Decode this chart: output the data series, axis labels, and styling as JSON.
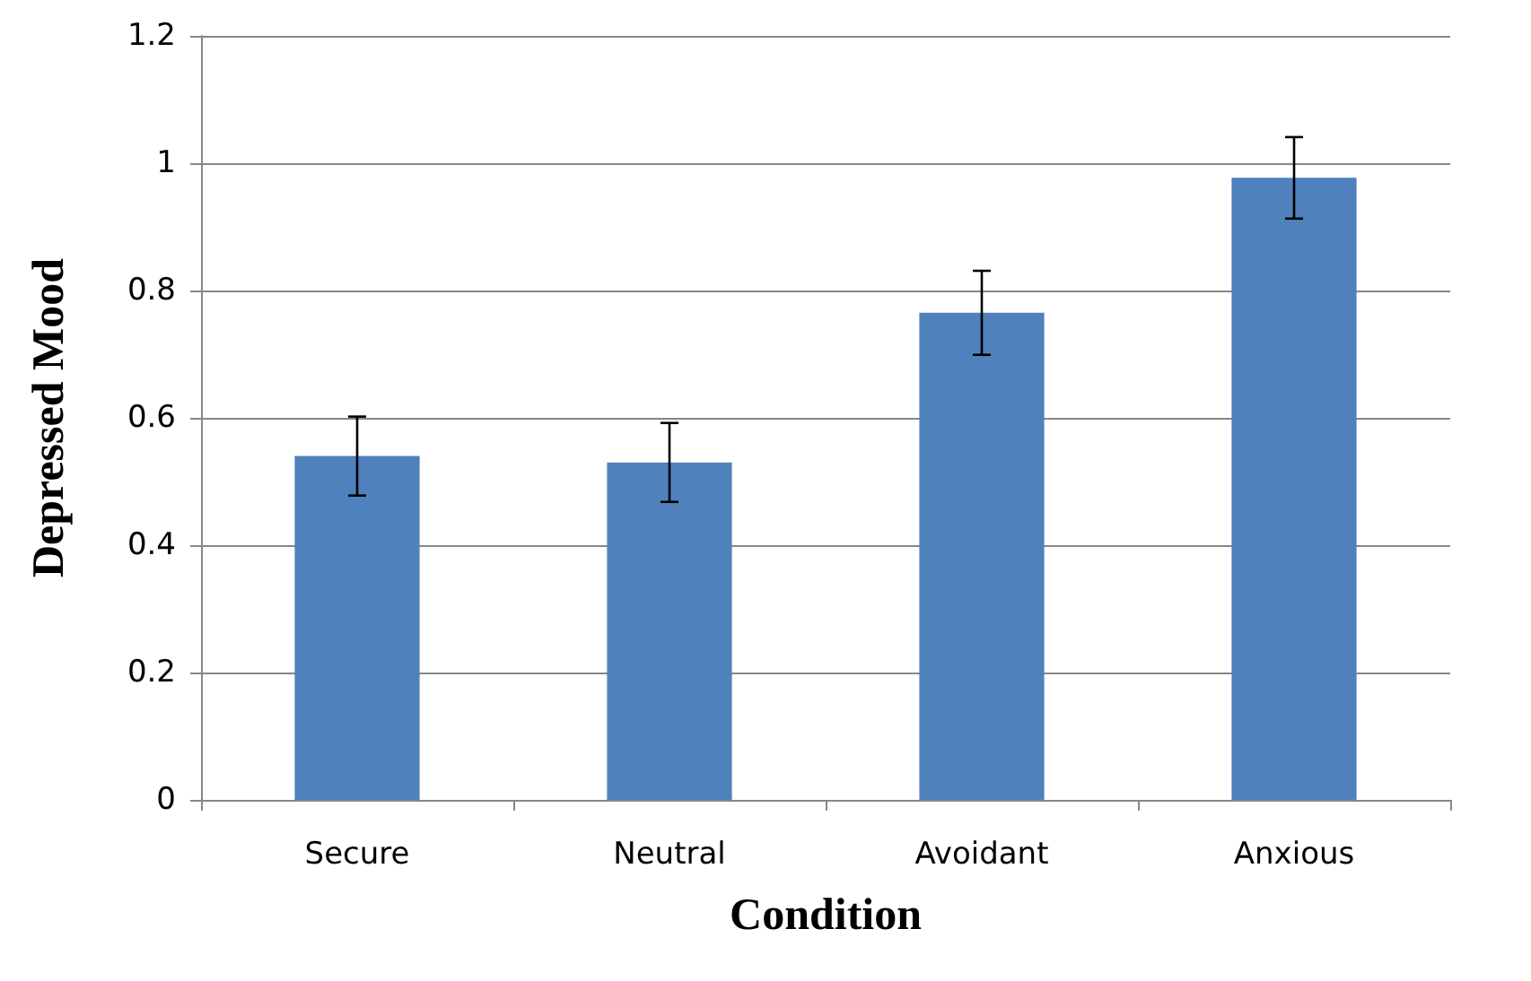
{
  "chart_data": {
    "type": "bar",
    "xlabel": "Condition",
    "ylabel": "Depressed Mood",
    "categories": [
      "Secure",
      "Neutral",
      "Avoidant",
      "Anxious"
    ],
    "values": [
      0.54,
      0.53,
      0.765,
      0.977
    ],
    "errors": [
      0.062,
      0.062,
      0.066,
      0.064
    ],
    "color": "#4f81bd",
    "ylim": [
      0,
      1.2
    ],
    "yticks": [
      0,
      0.2,
      0.4,
      0.6,
      0.8,
      1,
      1.2
    ],
    "grid": "y"
  }
}
